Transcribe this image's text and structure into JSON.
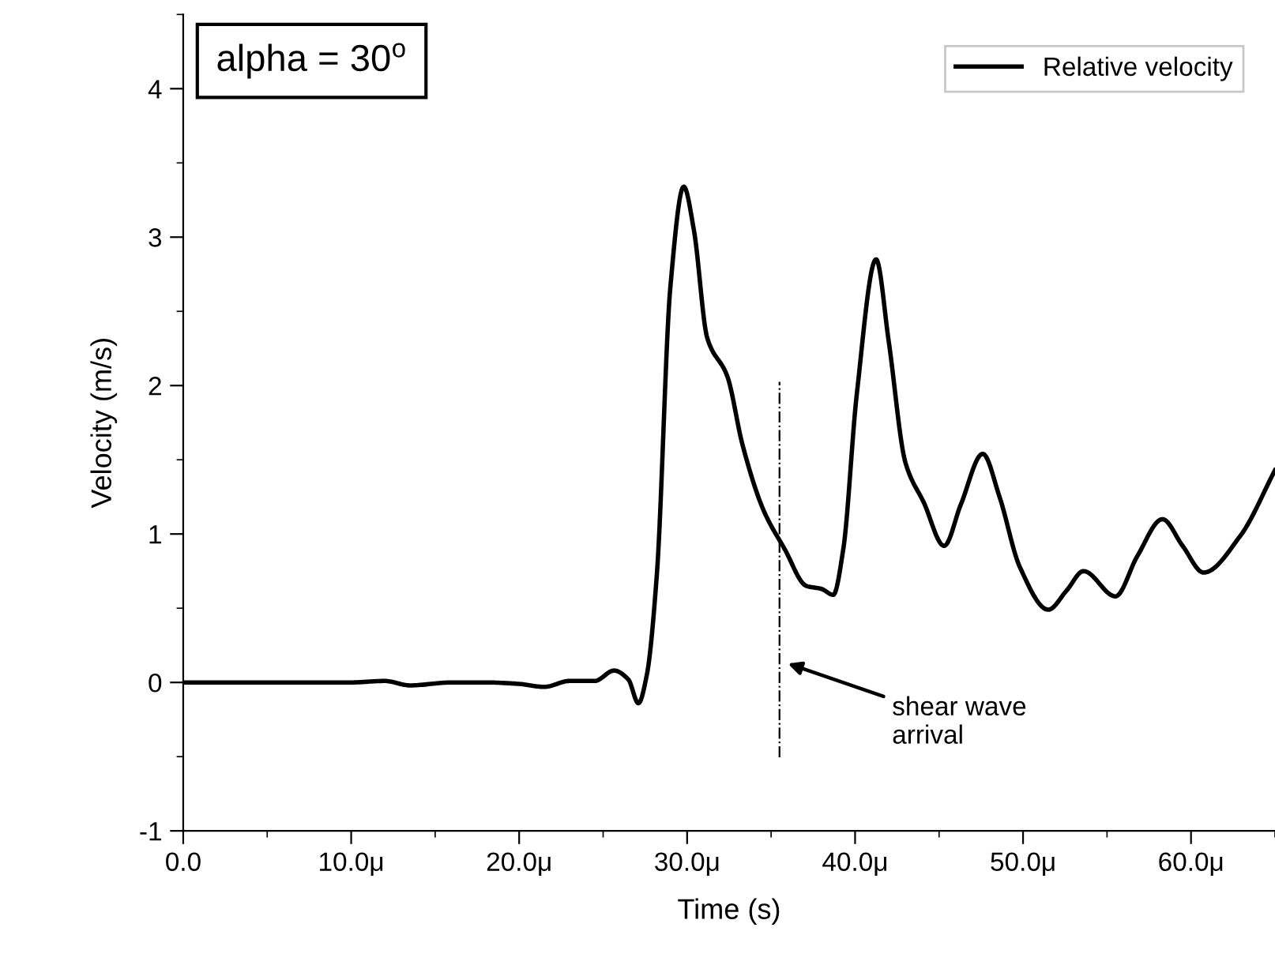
{
  "chart_data": {
    "type": "line",
    "xlabel": "Time (s)",
    "ylabel": "Velocity (m/s)",
    "xlim": [
      0,
      65
    ],
    "ylim": [
      -1,
      4.5
    ],
    "xticks": [
      {
        "value": 0,
        "label": "0.0"
      },
      {
        "value": 10,
        "label": "10.0μ"
      },
      {
        "value": 20,
        "label": "20.0μ"
      },
      {
        "value": 30,
        "label": "30.0μ"
      },
      {
        "value": 40,
        "label": "40.0μ"
      },
      {
        "value": 50,
        "label": "50.0μ"
      },
      {
        "value": 60,
        "label": "60.0μ"
      }
    ],
    "yticks": [
      -1,
      0,
      1,
      2,
      3,
      4
    ],
    "series": [
      {
        "name": "Relative velocity",
        "color": "#000000",
        "x": [
          0,
          5,
          10,
          12,
          13.5,
          16,
          18,
          20,
          21.5,
          23,
          24.5,
          25.65,
          26.5,
          27.1,
          27.6,
          28.2,
          29.0,
          29.8,
          30.4,
          31.2,
          32.4,
          33.3,
          34.55,
          35.8,
          37.1,
          38.0,
          38.7,
          39.3,
          40.1,
          41.25,
          42.0,
          43.0,
          44.1,
          45.3,
          46.3,
          47.6,
          48.6,
          49.8,
          51.5,
          52.6,
          53.6,
          55.5,
          56.8,
          58.3,
          59.5,
          60.75,
          62.95,
          65
        ],
        "values": [
          0,
          0,
          0,
          0.01,
          -0.02,
          0,
          0,
          -0.01,
          -0.03,
          0.01,
          0.01,
          0.08,
          0.02,
          -0.14,
          0.05,
          0.73,
          2.66,
          3.34,
          3.05,
          2.32,
          2.06,
          1.6,
          1.16,
          0.9,
          0.65,
          0.63,
          0.59,
          0.9,
          1.94,
          2.85,
          2.3,
          1.48,
          1.21,
          0.92,
          1.2,
          1.54,
          1.25,
          0.78,
          0.49,
          0.62,
          0.75,
          0.58,
          0.85,
          1.1,
          0.92,
          0.74,
          0.99,
          1.43
        ]
      }
    ],
    "ref_lines": [
      {
        "axis": "x",
        "value": 35.5,
        "color": "#000000",
        "line_style": "dashdot"
      }
    ],
    "annotations": [
      "alpha = 30$^{o}$",
      "shear wave\narrival"
    ],
    "legend": "top right",
    "grid": false,
    "marker": "none",
    "line_style": "solid"
  }
}
